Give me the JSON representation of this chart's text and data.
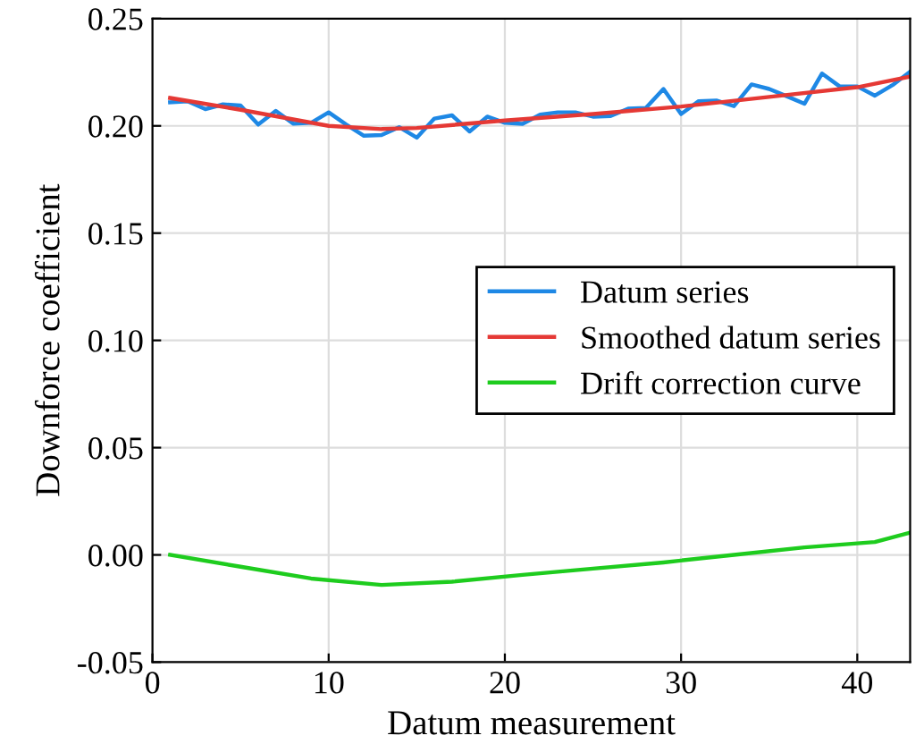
{
  "chart_data": {
    "type": "line",
    "xlabel": "Datum measurement",
    "ylabel": "Downforce coefficient",
    "xlim": [
      0,
      43
    ],
    "ylim": [
      -0.05,
      0.25
    ],
    "xticks": [
      0,
      10,
      20,
      30,
      40
    ],
    "yticks": [
      {
        "value": -0.05,
        "label": "-0.05"
      },
      {
        "value": 0,
        "label": "0.00"
      },
      {
        "value": 0.05,
        "label": "0.05"
      },
      {
        "value": 0.1,
        "label": "0.10"
      },
      {
        "value": 0.15,
        "label": "0.15"
      },
      {
        "value": 0.2,
        "label": "0.20"
      },
      {
        "value": 0.25,
        "label": "0.25"
      }
    ],
    "grid": true,
    "legend": "right",
    "line_style": "solid",
    "series": [
      {
        "name": "Datum series",
        "color": "#1e88e5",
        "x": [
          1,
          2,
          3,
          4,
          5,
          6,
          7,
          8,
          9,
          10,
          11,
          12,
          13,
          14,
          15,
          16,
          17,
          18,
          19,
          20,
          21,
          22,
          23,
          24,
          25,
          26,
          27,
          28,
          29,
          30,
          31,
          32,
          33,
          34,
          35,
          36,
          37,
          38,
          39,
          40,
          41,
          42,
          43
        ],
        "values": [
          0.211,
          0.2115,
          0.2078,
          0.21,
          0.2095,
          0.2006,
          0.207,
          0.201,
          0.2014,
          0.2063,
          0.2006,
          0.1954,
          0.1957,
          0.1994,
          0.1945,
          0.2034,
          0.2049,
          0.1974,
          0.2043,
          0.2014,
          0.2009,
          0.2052,
          0.2063,
          0.2063,
          0.2043,
          0.2046,
          0.208,
          0.2083,
          0.2172,
          0.2055,
          0.2115,
          0.2118,
          0.2092,
          0.2193,
          0.2172,
          0.2138,
          0.2103,
          0.2244,
          0.2184,
          0.2184,
          0.2141,
          0.219,
          0.2253
        ]
      },
      {
        "name": "Smoothed datum series",
        "color": "#e53935",
        "x": [
          1,
          5,
          10,
          13,
          15,
          20,
          25,
          30,
          35,
          40,
          43
        ],
        "values": [
          0.213,
          0.2075,
          0.2,
          0.1985,
          0.199,
          0.2025,
          0.2055,
          0.209,
          0.2135,
          0.218,
          0.223
        ]
      },
      {
        "name": "Drift correction curve",
        "color": "#1ecc1e",
        "x": [
          1,
          5,
          9,
          13,
          17,
          21,
          25,
          29,
          33,
          37,
          41,
          43
        ],
        "values": [
          0,
          -0.0055,
          -0.011,
          -0.014,
          -0.0125,
          -0.0093,
          -0.0064,
          -0.0035,
          0,
          0.0035,
          0.006,
          0.0104
        ]
      }
    ]
  }
}
